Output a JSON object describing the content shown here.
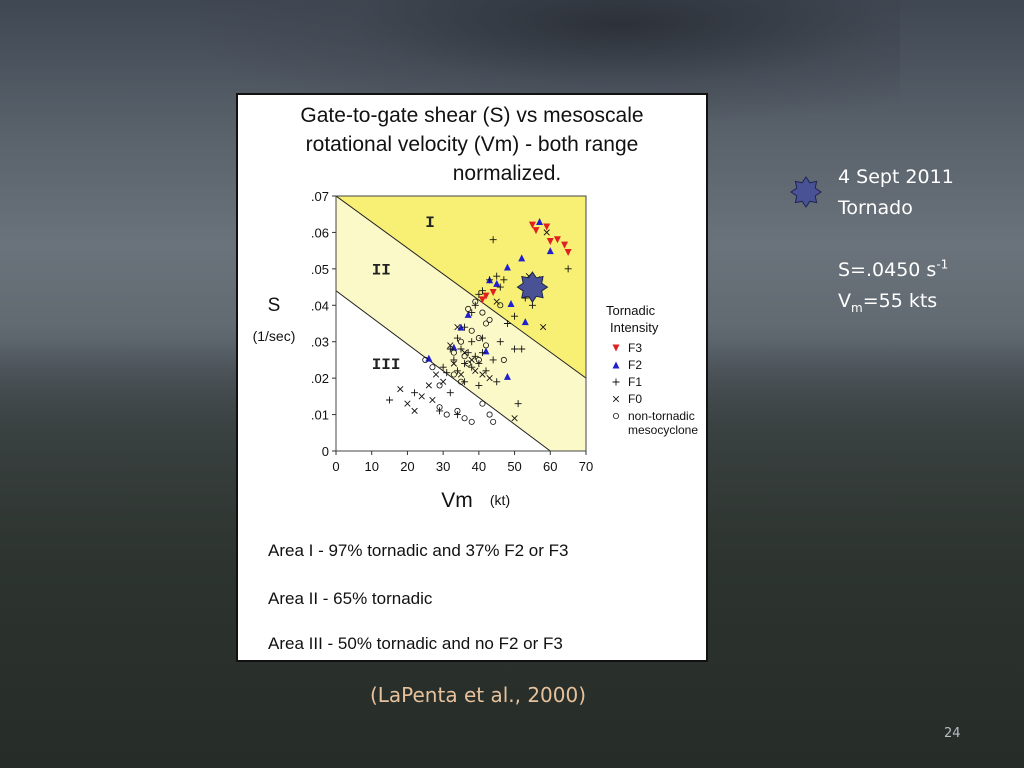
{
  "slide": {
    "number": "24",
    "citation": "(LaPenta et al., 2000)",
    "side": {
      "line1": "4 Sept 2011",
      "line2": "Tornado",
      "s_prefix": "S=.0450 s",
      "s_sup": "-1",
      "v_prefix": "V",
      "v_sub": "m",
      "v_suffix": "=55 kts",
      "star_color": "#4a5296"
    }
  },
  "panel": {
    "title_lines": [
      "Gate-to-gate shear (S) vs mesoscale",
      "rotational velocity (Vm) - both range",
      "normalized."
    ],
    "notes": [
      "Area I -  97% tornadic and 37% F2 or F3",
      "Area II - 65% tornadic",
      "Area III - 50% tornadic and no F2 or F3"
    ]
  },
  "chart_data": {
    "type": "scatter",
    "xlabel": "Vm",
    "xlabel_unit": "(kt)",
    "ylabel": "S",
    "ylabel_unit": "(1/sec)",
    "xlim": [
      0,
      70
    ],
    "ylim": [
      0,
      0.07
    ],
    "x_ticks": [
      0,
      10,
      20,
      30,
      40,
      50,
      60,
      70
    ],
    "y_ticks": [
      0,
      0.01,
      0.02,
      0.03,
      0.04,
      0.05,
      0.06,
      0.07
    ],
    "x_tick_labels": [
      "0",
      "10",
      "20",
      "30",
      "40",
      "50",
      "60",
      "70"
    ],
    "y_tick_labels": [
      "0",
      ".01",
      ".02",
      ".03",
      ".04",
      ".05",
      ".06",
      ".07"
    ],
    "regions": [
      {
        "label": "I",
        "color": "#f7f074",
        "label_at": [
          25,
          0.0615
        ]
      },
      {
        "label": "II",
        "color": "#fcf9c8",
        "label_at": [
          10,
          0.0485
        ]
      },
      {
        "label": "III",
        "color": "#ffffff",
        "label_at": [
          10,
          0.0225
        ]
      }
    ],
    "boundary_lines": [
      {
        "from": [
          0,
          0.07
        ],
        "to": [
          70,
          0.02
        ]
      },
      {
        "from": [
          0,
          0.044
        ],
        "to": [
          60,
          0.0
        ]
      }
    ],
    "legend_title": [
      "Tornadic",
      "Intensity"
    ],
    "series": [
      {
        "name": "F3",
        "marker": "triangle-down",
        "color": "#e02020",
        "points": [
          [
            55,
            0.062
          ],
          [
            59,
            0.0615
          ],
          [
            62,
            0.058
          ],
          [
            64,
            0.0565
          ],
          [
            56,
            0.0605
          ],
          [
            60,
            0.0575
          ],
          [
            65,
            0.0545
          ],
          [
            41,
            0.0415
          ],
          [
            44,
            0.0435
          ],
          [
            42,
            0.0425
          ]
        ]
      },
      {
        "name": "F2",
        "marker": "triangle-up",
        "color": "#2020d0",
        "points": [
          [
            57,
            0.063
          ],
          [
            60,
            0.055
          ],
          [
            52,
            0.053
          ],
          [
            48,
            0.0505
          ],
          [
            45,
            0.046
          ],
          [
            37,
            0.0375
          ],
          [
            35,
            0.034
          ],
          [
            43,
            0.047
          ],
          [
            53,
            0.0355
          ],
          [
            49,
            0.0405
          ],
          [
            26,
            0.0255
          ],
          [
            42,
            0.0275
          ],
          [
            48,
            0.0205
          ],
          [
            33,
            0.0285
          ]
        ]
      },
      {
        "name": "F1",
        "marker": "plus",
        "color": "#111111",
        "points": [
          [
            44,
            0.058
          ],
          [
            41,
            0.044
          ],
          [
            43,
            0.047
          ],
          [
            45,
            0.048
          ],
          [
            47,
            0.047
          ],
          [
            46,
            0.045
          ],
          [
            40,
            0.043
          ],
          [
            39,
            0.04
          ],
          [
            38,
            0.038
          ],
          [
            36,
            0.034
          ],
          [
            34,
            0.031
          ],
          [
            38,
            0.03
          ],
          [
            41,
            0.031
          ],
          [
            32,
            0.028
          ],
          [
            35,
            0.028
          ],
          [
            37,
            0.027
          ],
          [
            39,
            0.026
          ],
          [
            41,
            0.027
          ],
          [
            33,
            0.025
          ],
          [
            36,
            0.024
          ],
          [
            38,
            0.023
          ],
          [
            40,
            0.024
          ],
          [
            42,
            0.022
          ],
          [
            44,
            0.025
          ],
          [
            46,
            0.03
          ],
          [
            50,
            0.028
          ],
          [
            52,
            0.028
          ],
          [
            55,
            0.04
          ],
          [
            53,
            0.042
          ],
          [
            57,
            0.047
          ],
          [
            65,
            0.05
          ],
          [
            30,
            0.023
          ],
          [
            34,
            0.022
          ],
          [
            36,
            0.019
          ],
          [
            32,
            0.016
          ],
          [
            40,
            0.018
          ],
          [
            45,
            0.019
          ],
          [
            15,
            0.014
          ],
          [
            22,
            0.016
          ],
          [
            29,
            0.011
          ],
          [
            34,
            0.01
          ],
          [
            51,
            0.013
          ],
          [
            48,
            0.035
          ],
          [
            50,
            0.037
          ],
          [
            31,
            0.0215
          ]
        ]
      },
      {
        "name": "F0",
        "marker": "cross",
        "color": "#111111",
        "points": [
          [
            59,
            0.06
          ],
          [
            54,
            0.048
          ],
          [
            56,
            0.045
          ],
          [
            58,
            0.034
          ],
          [
            45,
            0.041
          ],
          [
            34,
            0.034
          ],
          [
            32,
            0.029
          ],
          [
            36,
            0.027
          ],
          [
            33,
            0.024
          ],
          [
            35,
            0.021
          ],
          [
            30,
            0.019
          ],
          [
            28,
            0.021
          ],
          [
            26,
            0.018
          ],
          [
            27,
            0.014
          ],
          [
            24,
            0.015
          ],
          [
            20,
            0.013
          ],
          [
            18,
            0.017
          ],
          [
            41,
            0.021
          ],
          [
            43,
            0.02
          ],
          [
            50,
            0.009
          ],
          [
            22,
            0.011
          ],
          [
            38,
            0.025
          ],
          [
            39,
            0.022
          ]
        ]
      },
      {
        "name": "non-tornadic mesocyclone",
        "marker": "circle",
        "color": "#111111",
        "points": [
          [
            39,
            0.041
          ],
          [
            41,
            0.038
          ],
          [
            37,
            0.039
          ],
          [
            43,
            0.036
          ],
          [
            38,
            0.033
          ],
          [
            42,
            0.035
          ],
          [
            40,
            0.031
          ],
          [
            35,
            0.03
          ],
          [
            33,
            0.027
          ],
          [
            36,
            0.026
          ],
          [
            37,
            0.024
          ],
          [
            40,
            0.025
          ],
          [
            42,
            0.029
          ],
          [
            47,
            0.025
          ],
          [
            33,
            0.021
          ],
          [
            35,
            0.019
          ],
          [
            25,
            0.025
          ],
          [
            27,
            0.023
          ],
          [
            29,
            0.018
          ],
          [
            29,
            0.012
          ],
          [
            31,
            0.01
          ],
          [
            34,
            0.011
          ],
          [
            36,
            0.009
          ],
          [
            41,
            0.013
          ],
          [
            43,
            0.01
          ],
          [
            38,
            0.008
          ],
          [
            44,
            0.008
          ],
          [
            46,
            0.04
          ]
        ]
      }
    ],
    "highlight": {
      "label": "4 Sept 2011 Tornado",
      "x": 55,
      "y": 0.045,
      "color": "#4a5296"
    }
  }
}
